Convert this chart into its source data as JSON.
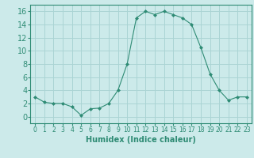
{
  "x": [
    0,
    1,
    2,
    3,
    4,
    5,
    6,
    7,
    8,
    9,
    10,
    11,
    12,
    13,
    14,
    15,
    16,
    17,
    18,
    19,
    20,
    21,
    22,
    23
  ],
  "y": [
    3,
    2.2,
    2,
    2,
    1.5,
    0.2,
    1.2,
    1.3,
    2,
    4,
    8,
    15,
    16,
    15.5,
    16,
    15.5,
    15,
    14,
    10.5,
    6.5,
    4,
    2.5,
    3,
    3
  ],
  "line_color": "#2e8b74",
  "marker": "D",
  "marker_size": 2.0,
  "bg_color": "#cceaea",
  "grid_color": "#aad4d4",
  "xlabel": "Humidex (Indice chaleur)",
  "xlim": [
    -0.5,
    23.5
  ],
  "ylim": [
    -1,
    17
  ],
  "yticks": [
    0,
    2,
    4,
    6,
    8,
    10,
    12,
    14,
    16
  ],
  "xticks": [
    0,
    1,
    2,
    3,
    4,
    5,
    6,
    7,
    8,
    9,
    10,
    11,
    12,
    13,
    14,
    15,
    16,
    17,
    18,
    19,
    20,
    21,
    22,
    23
  ],
  "xlabel_fontsize": 7,
  "ytick_fontsize": 7,
  "xtick_fontsize": 5.5
}
